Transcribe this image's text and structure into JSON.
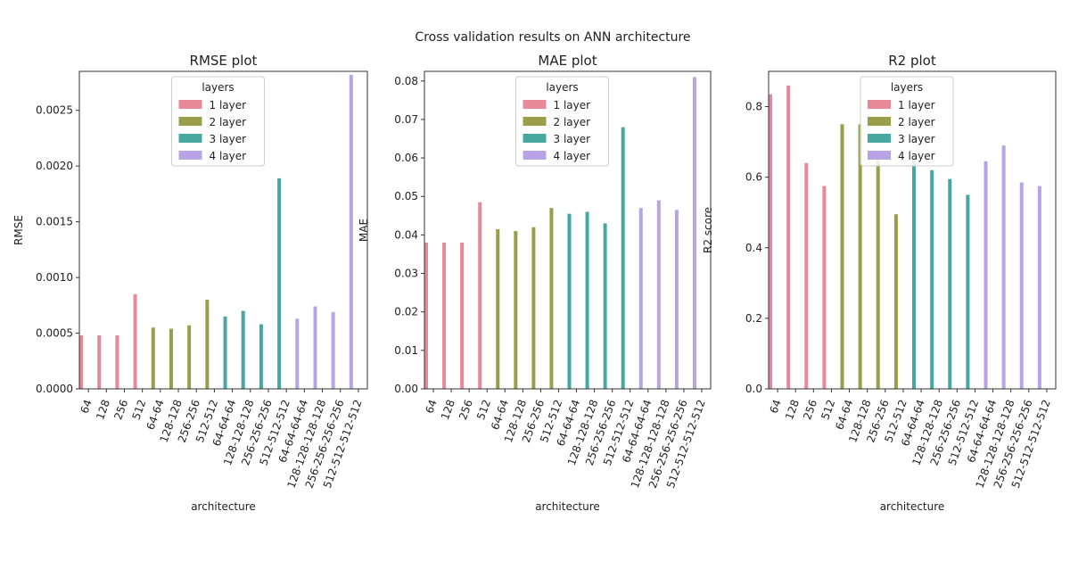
{
  "title": "Cross validation results on ANN architecture",
  "categories": [
    "64",
    "128",
    "256",
    "512",
    "64-64",
    "128-128",
    "256-256",
    "512-512",
    "64-64-64",
    "128-128-128",
    "256-256-256",
    "512-512-512",
    "64-64-64-64",
    "128-128-128-128",
    "256-256-256-256",
    "512-512-512-512"
  ],
  "layers": [
    1,
    1,
    1,
    1,
    2,
    2,
    2,
    2,
    3,
    3,
    3,
    3,
    4,
    4,
    4,
    4
  ],
  "legend": {
    "title": "layers",
    "entries": [
      {
        "label": "1 layer",
        "color": "#e8899a"
      },
      {
        "label": "2 layer",
        "color": "#9a9e4a"
      },
      {
        "label": "3 layer",
        "color": "#47a8a2"
      },
      {
        "label": "4 layer",
        "color": "#b8a4e4"
      }
    ]
  },
  "chart_data": [
    {
      "type": "bar",
      "title": "RMSE plot",
      "xlabel": "architecture",
      "ylabel": "RMSE",
      "ylim": [
        0,
        0.00285
      ],
      "yticks": [
        0,
        0.0005,
        0.001,
        0.0015,
        0.002,
        0.0025
      ],
      "ytick_labels": [
        "0.0000",
        "0.0005",
        "0.0010",
        "0.0015",
        "0.0020",
        "0.0025"
      ],
      "values": [
        0.00048,
        0.00048,
        0.00048,
        0.00085,
        0.00055,
        0.00054,
        0.00057,
        0.0008,
        0.00065,
        0.0007,
        0.00058,
        0.00189,
        0.00063,
        0.00074,
        0.00069,
        0.00282
      ]
    },
    {
      "type": "bar",
      "title": "MAE plot",
      "xlabel": "architecture",
      "ylabel": "MAE",
      "ylim": [
        0,
        0.0825
      ],
      "yticks": [
        0,
        0.01,
        0.02,
        0.03,
        0.04,
        0.05,
        0.06,
        0.07,
        0.08
      ],
      "ytick_labels": [
        "0.00",
        "0.01",
        "0.02",
        "0.03",
        "0.04",
        "0.05",
        "0.06",
        "0.07",
        "0.08"
      ],
      "values": [
        0.038,
        0.038,
        0.038,
        0.0485,
        0.0415,
        0.041,
        0.042,
        0.047,
        0.0455,
        0.046,
        0.043,
        0.068,
        0.047,
        0.049,
        0.0465,
        0.081
      ]
    },
    {
      "type": "bar",
      "title": "R2 plot",
      "xlabel": "architecture",
      "ylabel": "R2 score",
      "ylim": [
        0,
        0.9
      ],
      "yticks": [
        0,
        0.2,
        0.4,
        0.6,
        0.8
      ],
      "ytick_labels": [
        "0.0",
        "0.2",
        "0.4",
        "0.6",
        "0.8"
      ],
      "values": [
        0.835,
        0.86,
        0.64,
        0.575,
        0.75,
        0.75,
        0.67,
        0.495,
        0.65,
        0.62,
        0.595,
        0.55,
        0.645,
        0.69,
        0.585,
        0.575
      ]
    }
  ]
}
